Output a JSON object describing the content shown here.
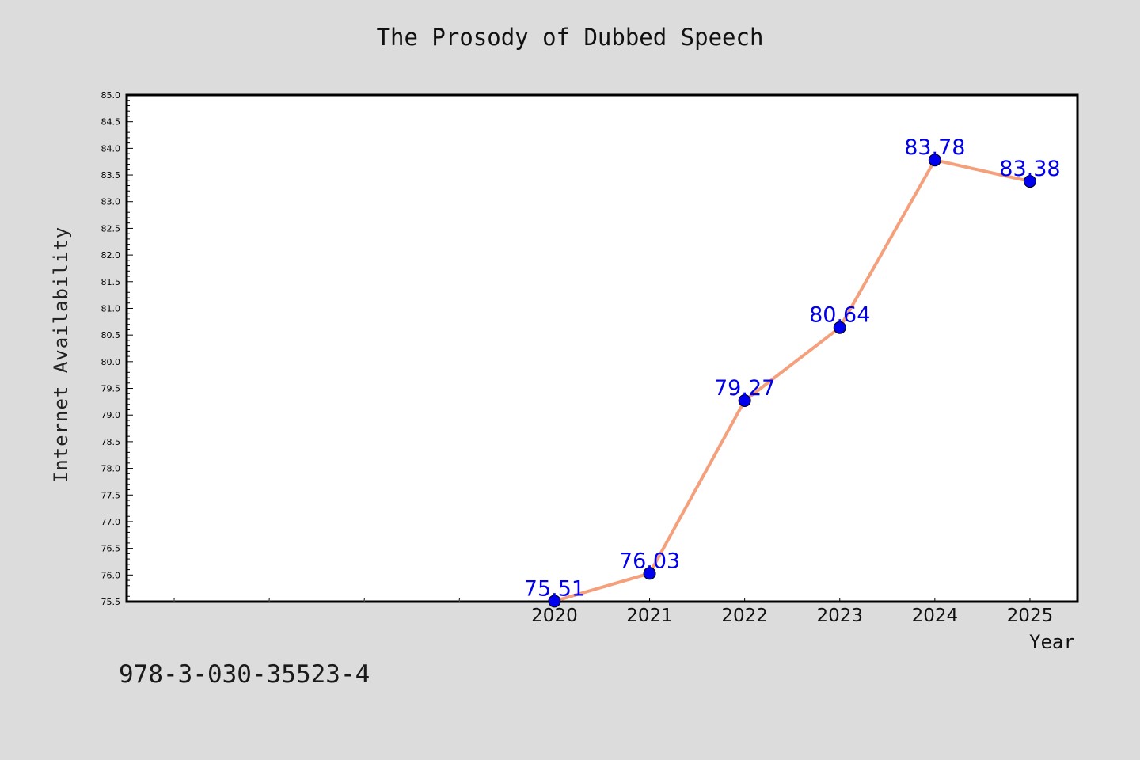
{
  "title": "The Prosody of Dubbed Speech",
  "footer_code": "978-3-030-35523-4",
  "chart_data": {
    "type": "line",
    "title": "The Prosody of Dubbed Speech",
    "xlabel": "Year",
    "ylabel": "Internet Availability",
    "x": [
      2020,
      2021,
      2022,
      2023,
      2024,
      2025
    ],
    "series": [
      {
        "values": [
          75.51,
          76.03,
          79.27,
          80.64,
          83.78,
          83.38
        ]
      }
    ],
    "data_labels": [
      "75.51",
      "76.03",
      "79.27",
      "80.64",
      "83.78",
      "83.38"
    ],
    "xlim": [
      2015.5,
      2025.5
    ],
    "ylim": [
      75.5,
      85.0
    ],
    "y_ticks": [
      "75.5",
      "76.0",
      "76.5",
      "77.0",
      "77.5",
      "78.0",
      "78.5",
      "79.0",
      "79.5",
      "80.0",
      "80.5",
      "81.0",
      "81.5",
      "82.0",
      "82.5",
      "83.0",
      "83.5",
      "84.0",
      "84.5",
      "85.0"
    ],
    "x_tick_labels": [
      "2020",
      "2021",
      "2022",
      "2023",
      "2024",
      "2025"
    ],
    "grid": false,
    "line_color": "#f4a07c",
    "marker_color": "#0000ee",
    "label_color": "#0000ee",
    "background": "#dcdcdc",
    "plot_background": "#ffffff"
  }
}
